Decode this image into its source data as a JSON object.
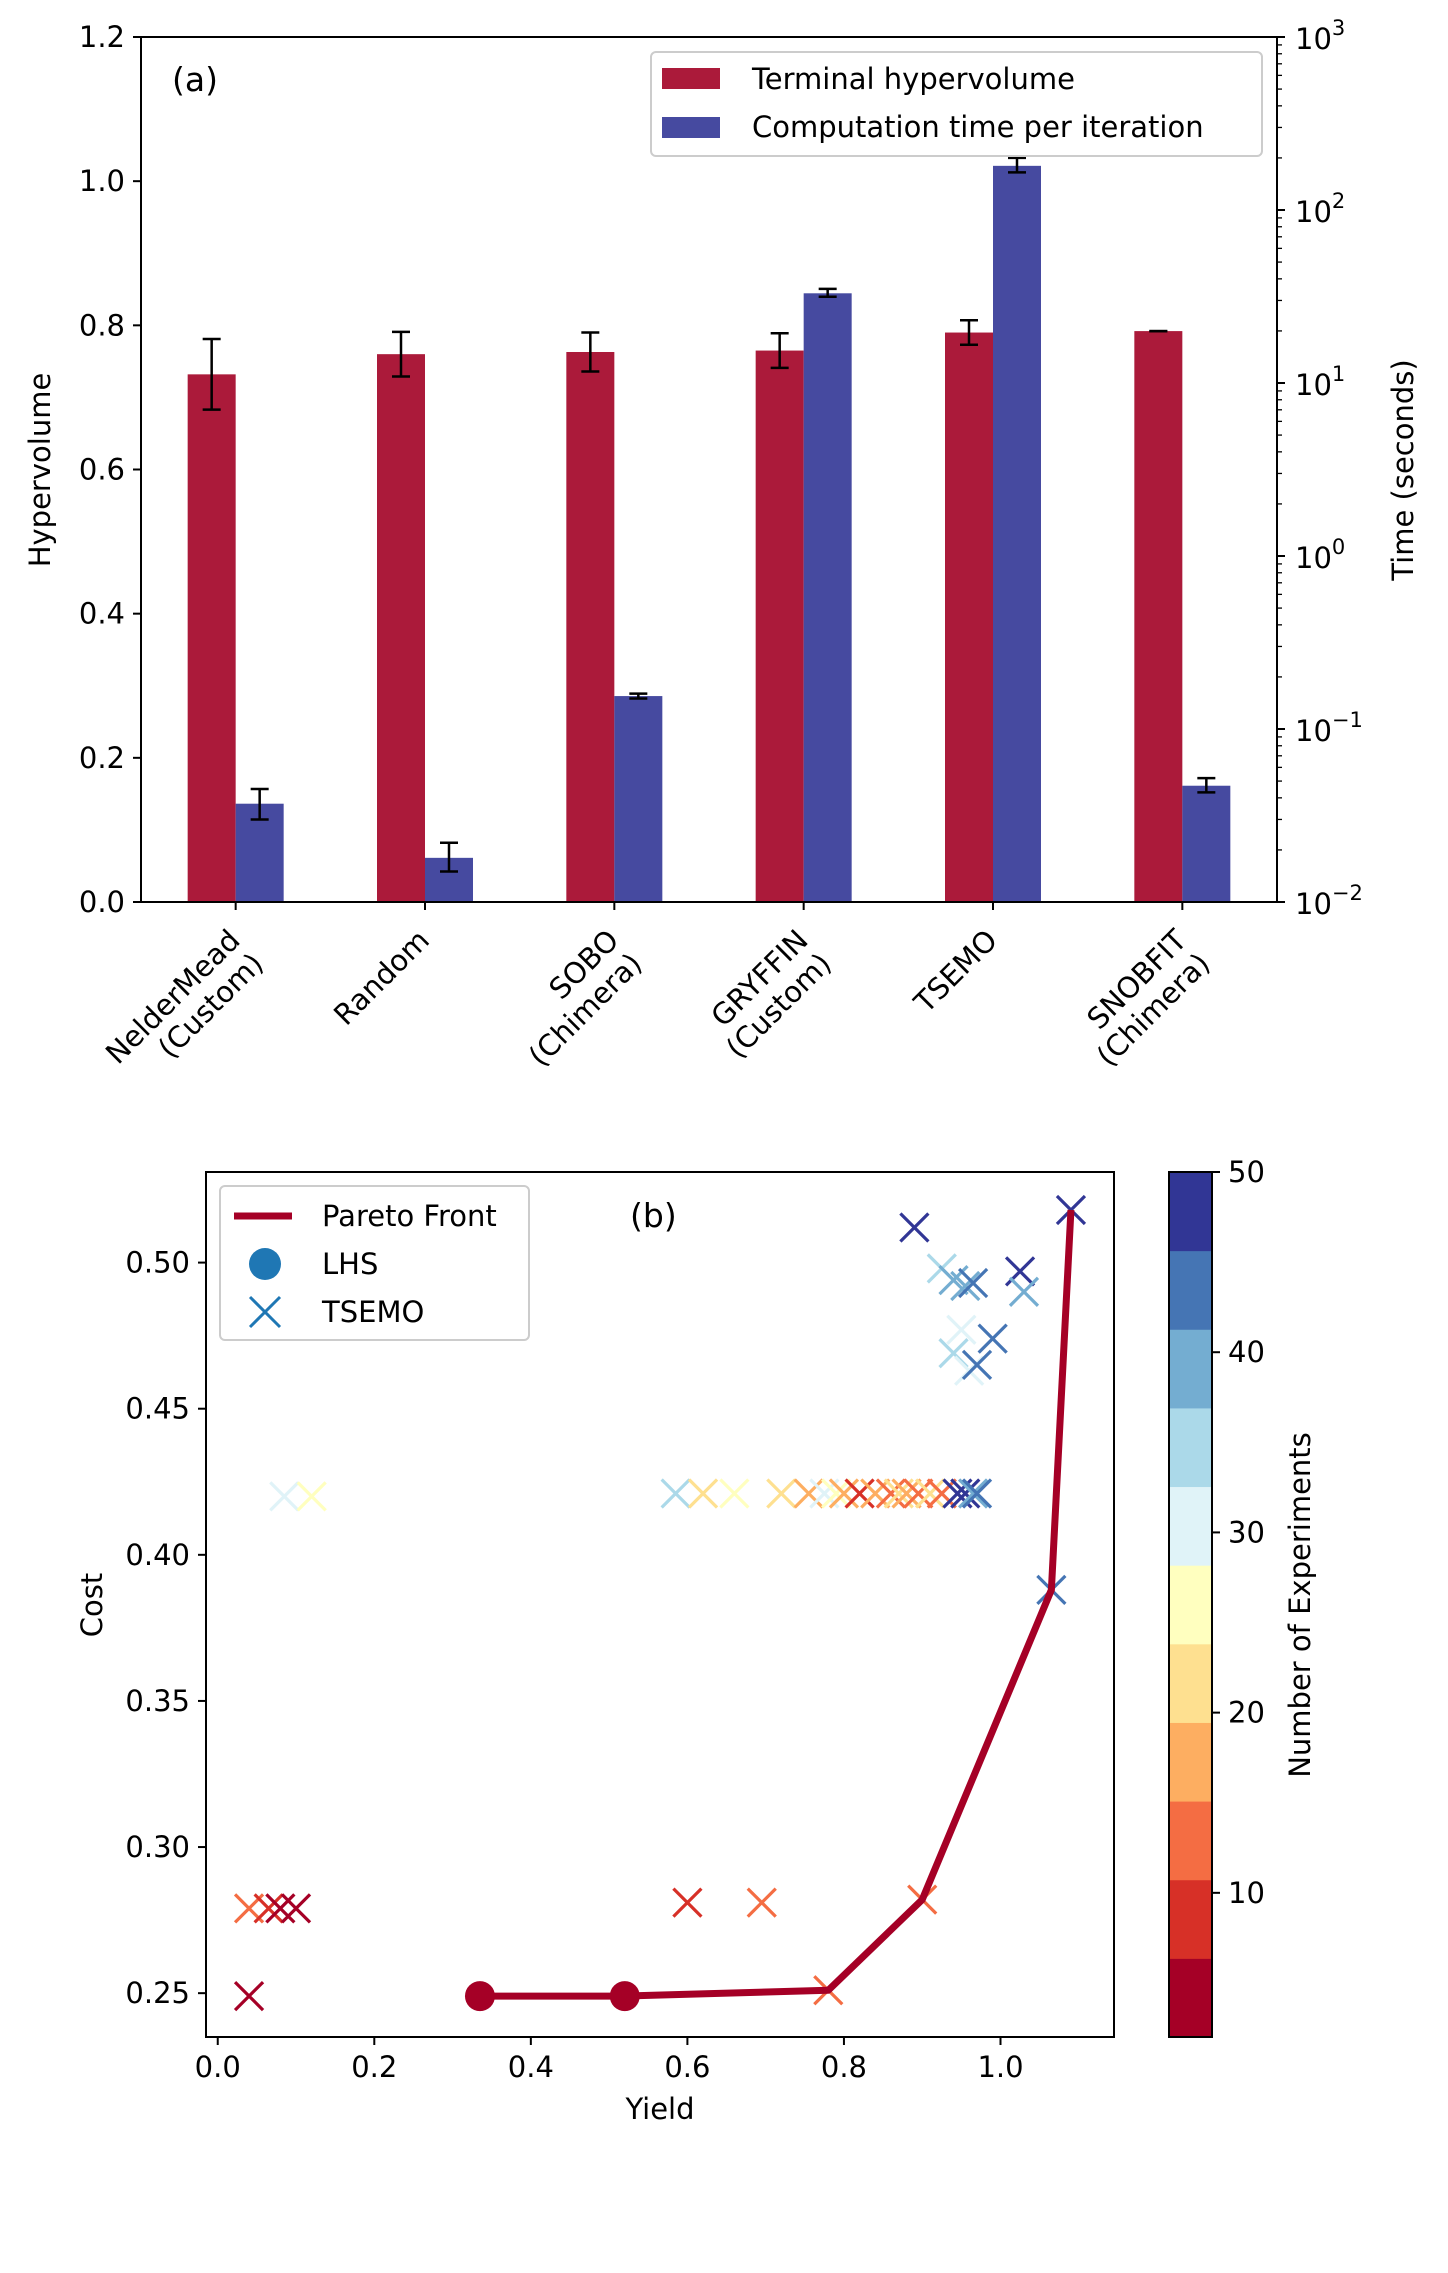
{
  "chart_data": [
    {
      "panel": "(a)",
      "type": "bar",
      "categories": [
        "NelderMead\n(Custom)",
        "Random",
        "SOBO\n(Chimera)",
        "GRYFFIN\n(Custom)",
        "TSEMO",
        "SNOBFIT\n(Chimera)"
      ],
      "ylabel": "Hypervolume",
      "ylabel_right": "Time (seconds)",
      "ylim": [
        0,
        1.2
      ],
      "ylim_right": [
        0.01,
        1000
      ],
      "right_scale": "log",
      "yticks": [
        "0.0",
        "0.2",
        "0.4",
        "0.6",
        "0.8",
        "1.0",
        "1.2"
      ],
      "yticks_right": [
        {
          "base": "10",
          "exp": "−2",
          "value": 0.01
        },
        {
          "base": "10",
          "exp": "−1",
          "value": 0.1
        },
        {
          "base": "10",
          "exp": "0",
          "value": 1
        },
        {
          "base": "10",
          "exp": "1",
          "value": 10
        },
        {
          "base": "10",
          "exp": "2",
          "value": 100
        },
        {
          "base": "10",
          "exp": "3",
          "value": 1000
        }
      ],
      "legend_position": "top-right",
      "series": [
        {
          "name": "Terminal hypervolume",
          "axis": "left",
          "color": "#ab1a3a",
          "values": [
            0.732,
            0.76,
            0.763,
            0.765,
            0.79,
            0.792
          ],
          "errors": [
            0.049,
            0.031,
            0.027,
            0.024,
            0.017,
            0.0
          ]
        },
        {
          "name": "Computation time per iteration",
          "axis": "right",
          "color": "#464aa0",
          "values": [
            0.037,
            0.018,
            0.155,
            33.0,
            180.0,
            0.047
          ],
          "errors_low": [
            0.03,
            0.015,
            0.15,
            31.5,
            165.0,
            0.043
          ],
          "errors_high": [
            0.045,
            0.022,
            0.16,
            35.0,
            200.0,
            0.052
          ]
        }
      ]
    },
    {
      "panel": "(b)",
      "type": "scatter",
      "xlabel": "Yield",
      "ylabel": "Cost",
      "xlim": [
        -0.015,
        1.145
      ],
      "ylim": [
        0.235,
        0.531
      ],
      "xticks": [
        "0.0",
        "0.2",
        "0.4",
        "0.6",
        "0.8",
        "1.0"
      ],
      "yticks": [
        "0.25",
        "0.30",
        "0.35",
        "0.40",
        "0.45",
        "0.50"
      ],
      "legend_position": "top-left",
      "legend": [
        {
          "name": "Pareto Front",
          "marker": "line",
          "color": "#a50026"
        },
        {
          "name": "LHS",
          "marker": "circle",
          "color": "#1f77b4"
        },
        {
          "name": "TSEMO",
          "marker": "x",
          "color": "#1f77b4"
        }
      ],
      "colorbar": {
        "label": "Number of Experiments",
        "range": [
          2,
          50
        ],
        "ticks": [
          "10",
          "20",
          "30",
          "40",
          "50"
        ],
        "bands": [
          "#a50026",
          "#d73027",
          "#f46d43",
          "#fdae61",
          "#fee090",
          "#ffffbf",
          "#e0f3f8",
          "#abd9e9",
          "#74add1",
          "#4575b4",
          "#313695"
        ]
      },
      "pareto_front": {
        "x": [
          0.335,
          0.52,
          0.78,
          0.9,
          1.065,
          1.09
        ],
        "y": [
          0.249,
          0.249,
          0.251,
          0.282,
          0.388,
          0.518
        ]
      },
      "lhs_points": [
        {
          "x": 0.335,
          "y": 0.249,
          "n": 1
        },
        {
          "x": 0.52,
          "y": 0.249,
          "n": 6
        }
      ],
      "tsemo_points": [
        {
          "x": 0.04,
          "y": 0.249,
          "n": 4
        },
        {
          "x": 0.04,
          "y": 0.279,
          "n": 14
        },
        {
          "x": 0.065,
          "y": 0.279,
          "n": 8
        },
        {
          "x": 0.08,
          "y": 0.279,
          "n": 4
        },
        {
          "x": 0.1,
          "y": 0.279,
          "n": 5
        },
        {
          "x": 0.085,
          "y": 0.42,
          "n": 29
        },
        {
          "x": 0.12,
          "y": 0.42,
          "n": 24
        },
        {
          "x": 0.6,
          "y": 0.281,
          "n": 10
        },
        {
          "x": 0.695,
          "y": 0.281,
          "n": 14
        },
        {
          "x": 0.78,
          "y": 0.251,
          "n": 15
        },
        {
          "x": 0.9,
          "y": 0.282,
          "n": 11
        },
        {
          "x": 0.585,
          "y": 0.421,
          "n": 33
        },
        {
          "x": 0.62,
          "y": 0.421,
          "n": 23
        },
        {
          "x": 0.66,
          "y": 0.421,
          "n": 26
        },
        {
          "x": 0.72,
          "y": 0.421,
          "n": 21
        },
        {
          "x": 0.755,
          "y": 0.421,
          "n": 19
        },
        {
          "x": 0.775,
          "y": 0.421,
          "n": 32
        },
        {
          "x": 0.79,
          "y": 0.421,
          "n": 24
        },
        {
          "x": 0.8,
          "y": 0.421,
          "n": 18
        },
        {
          "x": 0.82,
          "y": 0.421,
          "n": 10
        },
        {
          "x": 0.84,
          "y": 0.421,
          "n": 16
        },
        {
          "x": 0.86,
          "y": 0.421,
          "n": 13
        },
        {
          "x": 0.87,
          "y": 0.421,
          "n": 22
        },
        {
          "x": 0.88,
          "y": 0.421,
          "n": 17
        },
        {
          "x": 0.895,
          "y": 0.421,
          "n": 14
        },
        {
          "x": 0.91,
          "y": 0.421,
          "n": 20
        },
        {
          "x": 0.925,
          "y": 0.421,
          "n": 12
        },
        {
          "x": 0.945,
          "y": 0.421,
          "n": 46
        },
        {
          "x": 0.955,
          "y": 0.421,
          "n": 49
        },
        {
          "x": 0.965,
          "y": 0.421,
          "n": 37
        },
        {
          "x": 0.97,
          "y": 0.421,
          "n": 42
        },
        {
          "x": 0.89,
          "y": 0.512,
          "n": 48
        },
        {
          "x": 0.925,
          "y": 0.498,
          "n": 36
        },
        {
          "x": 0.94,
          "y": 0.494,
          "n": 38
        },
        {
          "x": 0.955,
          "y": 0.492,
          "n": 41
        },
        {
          "x": 0.965,
          "y": 0.493,
          "n": 44
        },
        {
          "x": 1.025,
          "y": 0.497,
          "n": 47
        },
        {
          "x": 1.03,
          "y": 0.49,
          "n": 40
        },
        {
          "x": 0.95,
          "y": 0.477,
          "n": 31
        },
        {
          "x": 0.94,
          "y": 0.469,
          "n": 34
        },
        {
          "x": 0.96,
          "y": 0.463,
          "n": 30
        },
        {
          "x": 0.99,
          "y": 0.474,
          "n": 43
        },
        {
          "x": 0.97,
          "y": 0.465,
          "n": 45
        },
        {
          "x": 1.065,
          "y": 0.388,
          "n": 42
        },
        {
          "x": 1.09,
          "y": 0.518,
          "n": 50
        }
      ]
    }
  ]
}
